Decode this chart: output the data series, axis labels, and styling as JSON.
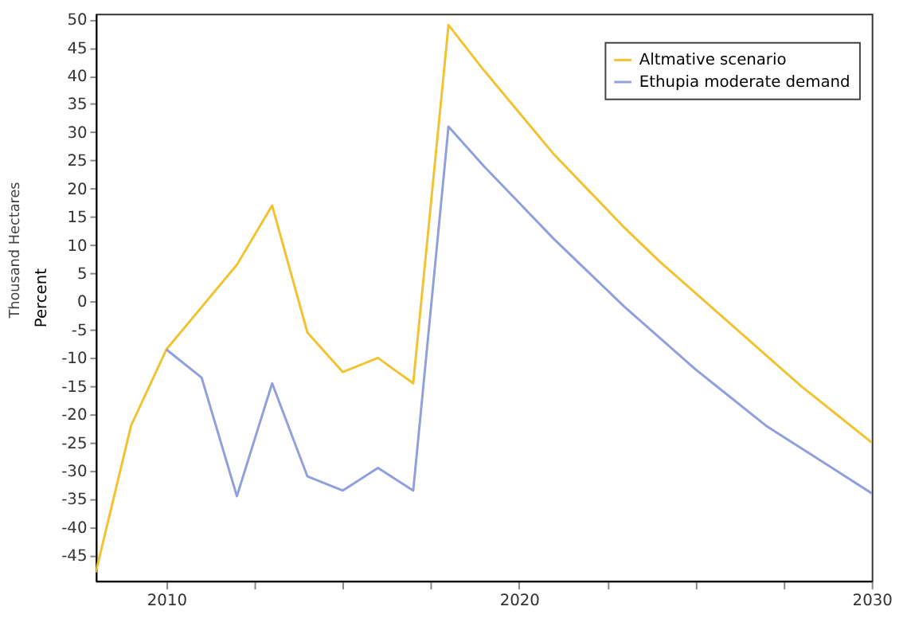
{
  "chart_data": {
    "type": "line",
    "ylabel": "Percent",
    "annotations": [
      "Thousand Hectares"
    ],
    "xlim": [
      2008,
      2030
    ],
    "ylim": [
      -49.5,
      51
    ],
    "xticks": [
      2010,
      {
        "value": 2012.5,
        "label": null
      },
      {
        "value": 2015,
        "label": null
      },
      {
        "value": 2017.5,
        "label": null
      },
      2020,
      {
        "value": 2022.5,
        "label": null
      },
      {
        "value": 2025,
        "label": null
      },
      {
        "value": 2027.5,
        "label": null
      },
      2030
    ],
    "yticks": [
      -45,
      -40,
      -35,
      -30,
      -25,
      -20,
      -15,
      -10,
      -5,
      0,
      5,
      10,
      15,
      20,
      25,
      30,
      35,
      40,
      45,
      50
    ],
    "grid": false,
    "legend": "top right",
    "marker": "none",
    "line_style": "solid",
    "series": [
      {
        "name": "Altmative scenario",
        "color": "#f2c230",
        "x": [
          2008,
          2009,
          2010,
          2011,
          2012,
          2013,
          2014,
          2015,
          2016,
          2017,
          2018,
          2019,
          2020,
          2021,
          2022,
          2023,
          2024,
          2025,
          2026,
          2027,
          2028,
          2029,
          2030
        ],
        "values": [
          -48,
          -22,
          -8.5,
          -1,
          6.5,
          17,
          -5.5,
          -12.5,
          -10,
          -14.5,
          49,
          41,
          33.5,
          26,
          19.5,
          13,
          7,
          1.5,
          -4,
          -9.5,
          -15,
          -20,
          -25
        ]
      },
      {
        "name": "Ethupia moderate demand",
        "color": "#8fa0dc",
        "x": [
          2010,
          2011,
          2012,
          2013,
          2014,
          2015,
          2016,
          2017,
          2018,
          2019,
          2020,
          2021,
          2022,
          2023,
          2024,
          2025,
          2026,
          2027,
          2028,
          2029,
          2030
        ],
        "values": [
          -8.5,
          -13.5,
          -34.5,
          -14.5,
          -31,
          -33.5,
          -29.5,
          -33.5,
          31,
          24,
          17.5,
          11,
          5,
          -1,
          -6.5,
          -12,
          -17,
          -22,
          -26,
          -30,
          -34
        ]
      }
    ]
  }
}
